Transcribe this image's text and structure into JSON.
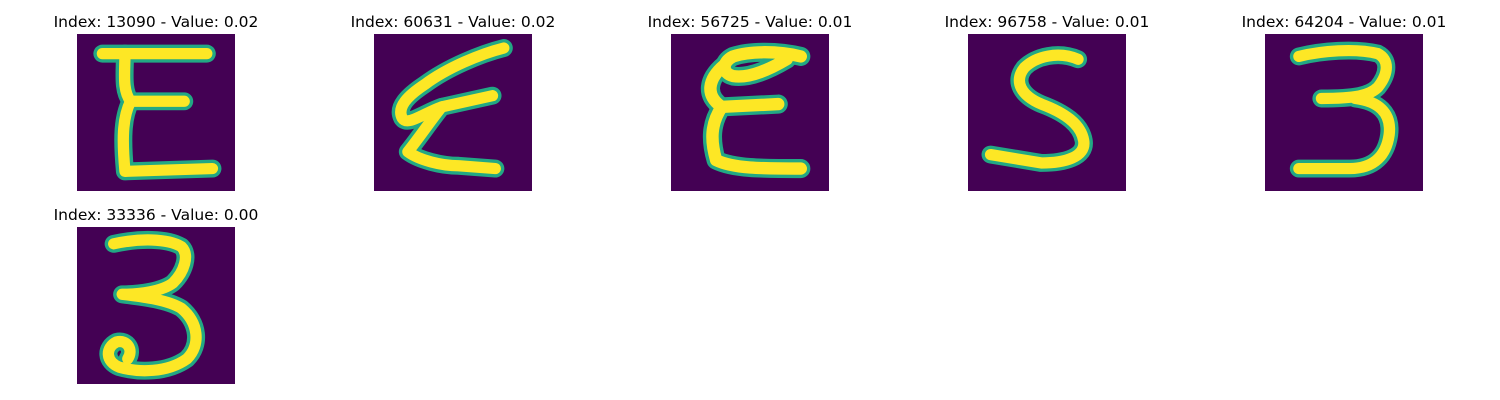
{
  "figure": {
    "colors": {
      "background": "#440154",
      "stroke_core": "#fde725",
      "stroke_edge": "#22a884"
    },
    "panels": [
      {
        "title": "Index: 13090 - Value: 0.02",
        "index": 13090,
        "value": 0.02,
        "glyph": "E"
      },
      {
        "title": "Index: 60631 - Value: 0.02",
        "index": 60631,
        "value": 0.02,
        "glyph": "E-slanted"
      },
      {
        "title": "Index: 56725 - Value: 0.01",
        "index": 56725,
        "value": 0.01,
        "glyph": "E-rounded"
      },
      {
        "title": "Index: 96758 - Value: 0.01",
        "index": 96758,
        "value": 0.01,
        "glyph": "S"
      },
      {
        "title": "Index: 64204 - Value: 0.01",
        "index": 64204,
        "value": 0.01,
        "glyph": "3"
      },
      {
        "title": "Index: 33336 - Value: 0.00",
        "index": 33336,
        "value": 0.0,
        "glyph": "3-looped"
      }
    ]
  }
}
